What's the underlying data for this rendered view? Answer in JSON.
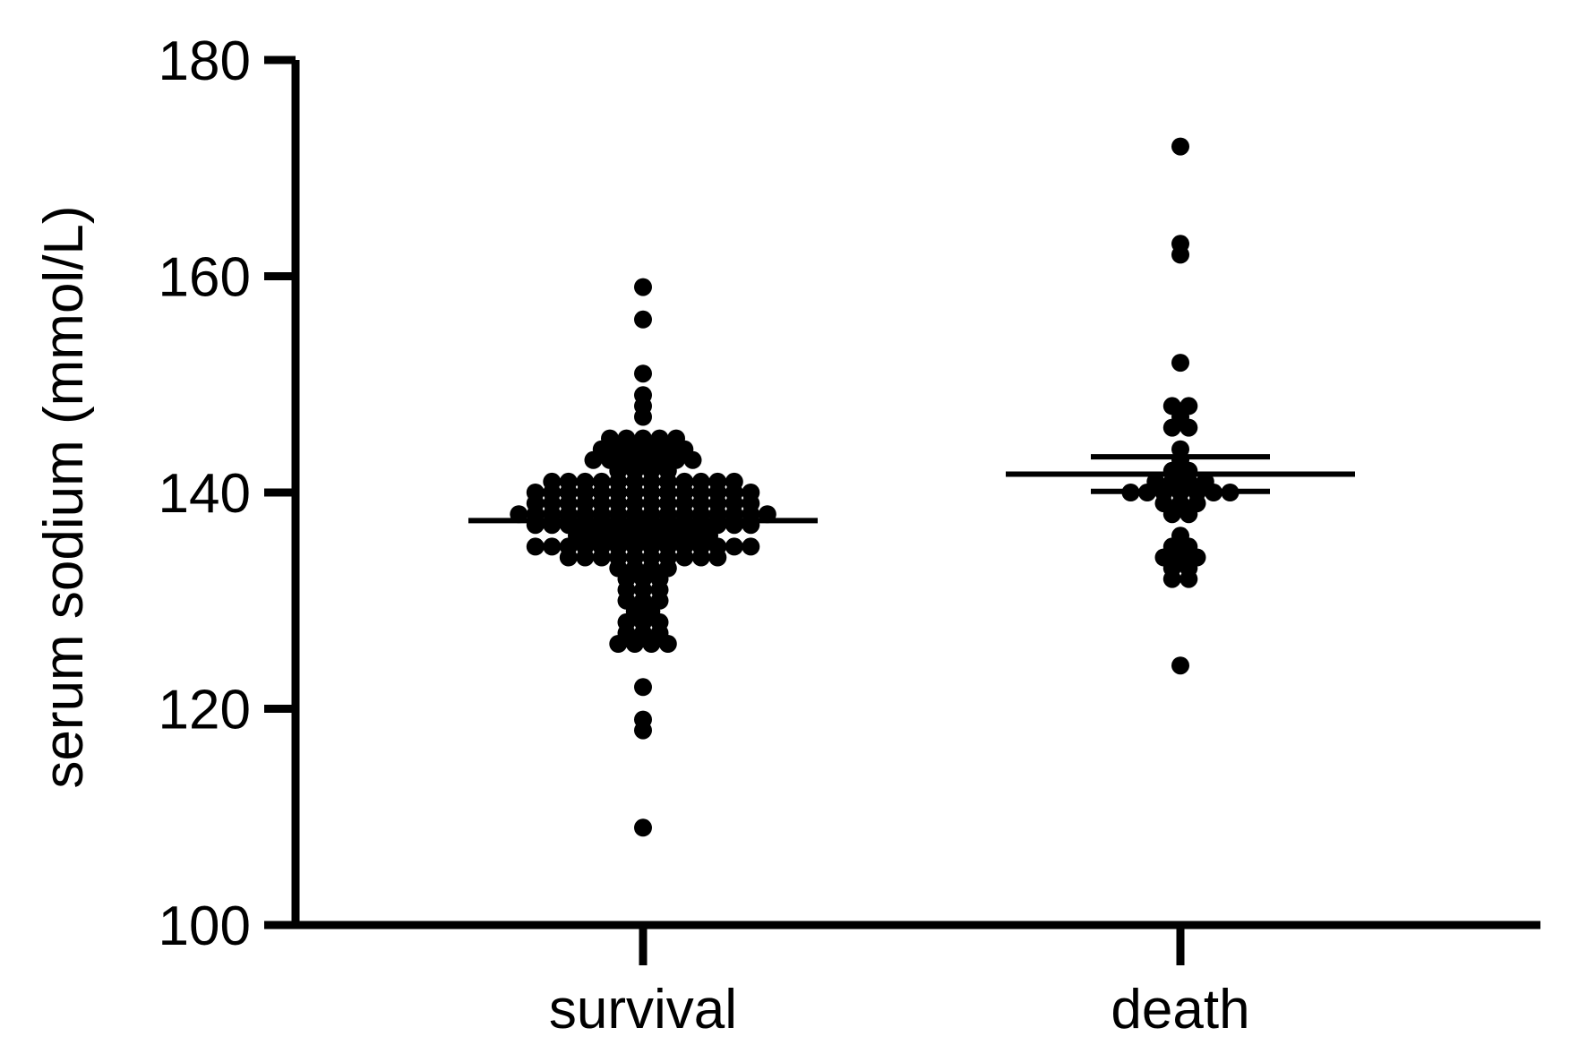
{
  "chart_data": {
    "type": "scatter",
    "subtype": "dot-plot-with-mean-and-error-bars",
    "ylabel": "serum sodium (mmol/L)",
    "ylim": [
      100,
      180
    ],
    "yticks": [
      100,
      120,
      140,
      160,
      180
    ],
    "grid": false,
    "legend": "none",
    "colors": {
      "points": "#000000",
      "axes": "#000000",
      "background": "#ffffff"
    },
    "categories": [
      "survival",
      "death"
    ],
    "series": [
      {
        "category": "survival",
        "mean": 137.4,
        "error_low": 137.0,
        "error_high": 137.9,
        "values": [
          159,
          156,
          151,
          149,
          148,
          147,
          145,
          145,
          145,
          145,
          145,
          144,
          144,
          144,
          144,
          144,
          144,
          143,
          143,
          143,
          143,
          143,
          143,
          143,
          142,
          142,
          142,
          142,
          141,
          141,
          141,
          141,
          141,
          141,
          141,
          141,
          141,
          141,
          141,
          141,
          140,
          140,
          140,
          140,
          140,
          140,
          140,
          140,
          140,
          140,
          140,
          140,
          140,
          140,
          139,
          139,
          139,
          139,
          139,
          139,
          139,
          139,
          139,
          139,
          139,
          139,
          139,
          139,
          138,
          138,
          138,
          138,
          138,
          138,
          138,
          138,
          138,
          138,
          138,
          138,
          138,
          138,
          138,
          138,
          137,
          137,
          137,
          137,
          137,
          137,
          137,
          137,
          137,
          137,
          137,
          137,
          137,
          137,
          136,
          136,
          136,
          136,
          136,
          136,
          136,
          136,
          136,
          135,
          135,
          135,
          135,
          135,
          135,
          135,
          135,
          135,
          135,
          135,
          135,
          135,
          135,
          134,
          134,
          134,
          134,
          134,
          134,
          134,
          134,
          134,
          134,
          133,
          133,
          133,
          133,
          132,
          132,
          132,
          131,
          131,
          131,
          130,
          130,
          130,
          129,
          129,
          128,
          128,
          128,
          127,
          127,
          127,
          126,
          126,
          126,
          126,
          122,
          119,
          118,
          109
        ]
      },
      {
        "category": "death",
        "mean": 141.7,
        "error_low": 140.1,
        "error_high": 143.3,
        "values": [
          172,
          163,
          162,
          152,
          148,
          148,
          147,
          146,
          146,
          144,
          143,
          142,
          142,
          141,
          141,
          141,
          141,
          140,
          140,
          140,
          140,
          140,
          140,
          140,
          139,
          139,
          139,
          138,
          138,
          136,
          135,
          135,
          134,
          134,
          134,
          133,
          133,
          132,
          132,
          124
        ]
      }
    ]
  }
}
